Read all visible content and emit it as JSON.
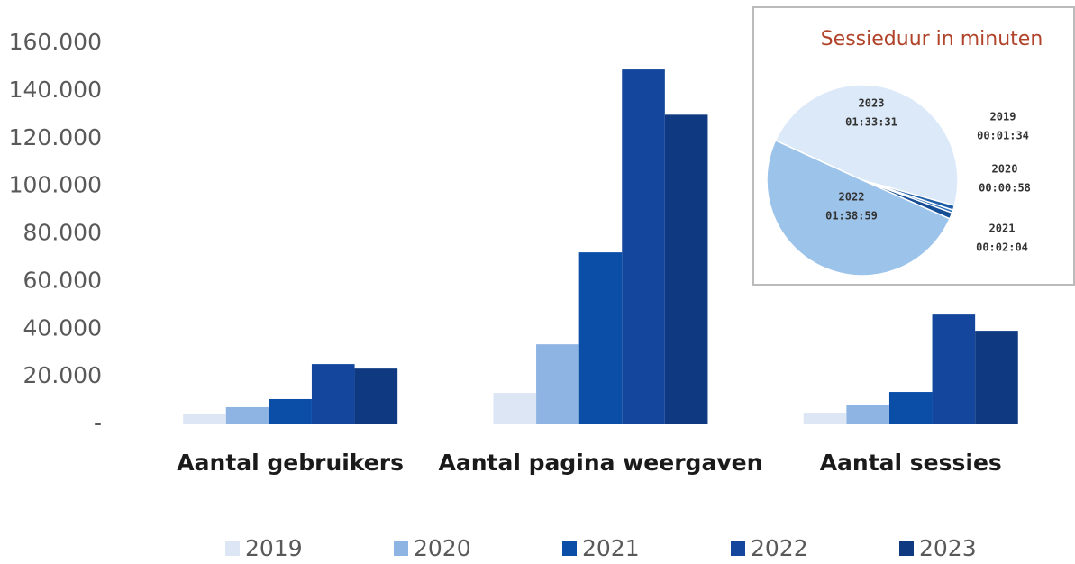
{
  "chart_data": [
    {
      "type": "bar",
      "categories": [
        "Aantal gebruikers",
        "Aantal pagina weergaven",
        "Aantal sessies"
      ],
      "series": [
        {
          "name": "2019",
          "color": "#dce6f5",
          "values": [
            4500,
            13200,
            4900
          ]
        },
        {
          "name": "2020",
          "color": "#8db4e2",
          "values": [
            7200,
            33600,
            8300
          ]
        },
        {
          "name": "2021",
          "color": "#0a4ea8",
          "values": [
            10600,
            72200,
            13600
          ]
        },
        {
          "name": "2022",
          "color": "#13469c",
          "values": [
            25300,
            149000,
            46100
          ]
        },
        {
          "name": "2023",
          "color": "#0f3a82",
          "values": [
            23400,
            130000,
            39300
          ]
        }
      ],
      "ylim": [
        0,
        170000
      ],
      "yticks": [
        {
          "value": 0,
          "label": "-"
        },
        {
          "value": 20000,
          "label": "20.000"
        },
        {
          "value": 40000,
          "label": "40.000"
        },
        {
          "value": 60000,
          "label": "60.000"
        },
        {
          "value": 80000,
          "label": "80.000"
        },
        {
          "value": 100000,
          "label": "100.000"
        },
        {
          "value": 120000,
          "label": "120.000"
        },
        {
          "value": 140000,
          "label": "140.000"
        },
        {
          "value": 160000,
          "label": "160.000"
        }
      ],
      "legend": "bottom"
    },
    {
      "type": "pie",
      "title": "Sessieduur in minuten",
      "categories": [
        "2023",
        "2019",
        "2020",
        "2021",
        "2022"
      ],
      "values": [
        5611,
        94,
        58,
        124,
        5939
      ],
      "value_labels": [
        "01:33:31",
        "00:01:34",
        "00:00:58",
        "00:02:04",
        "01:38:59"
      ],
      "colors": [
        "#dce9f8",
        "#1f5fa8",
        "#2a6db8",
        "#164e96",
        "#9cc3ea"
      ]
    }
  ]
}
